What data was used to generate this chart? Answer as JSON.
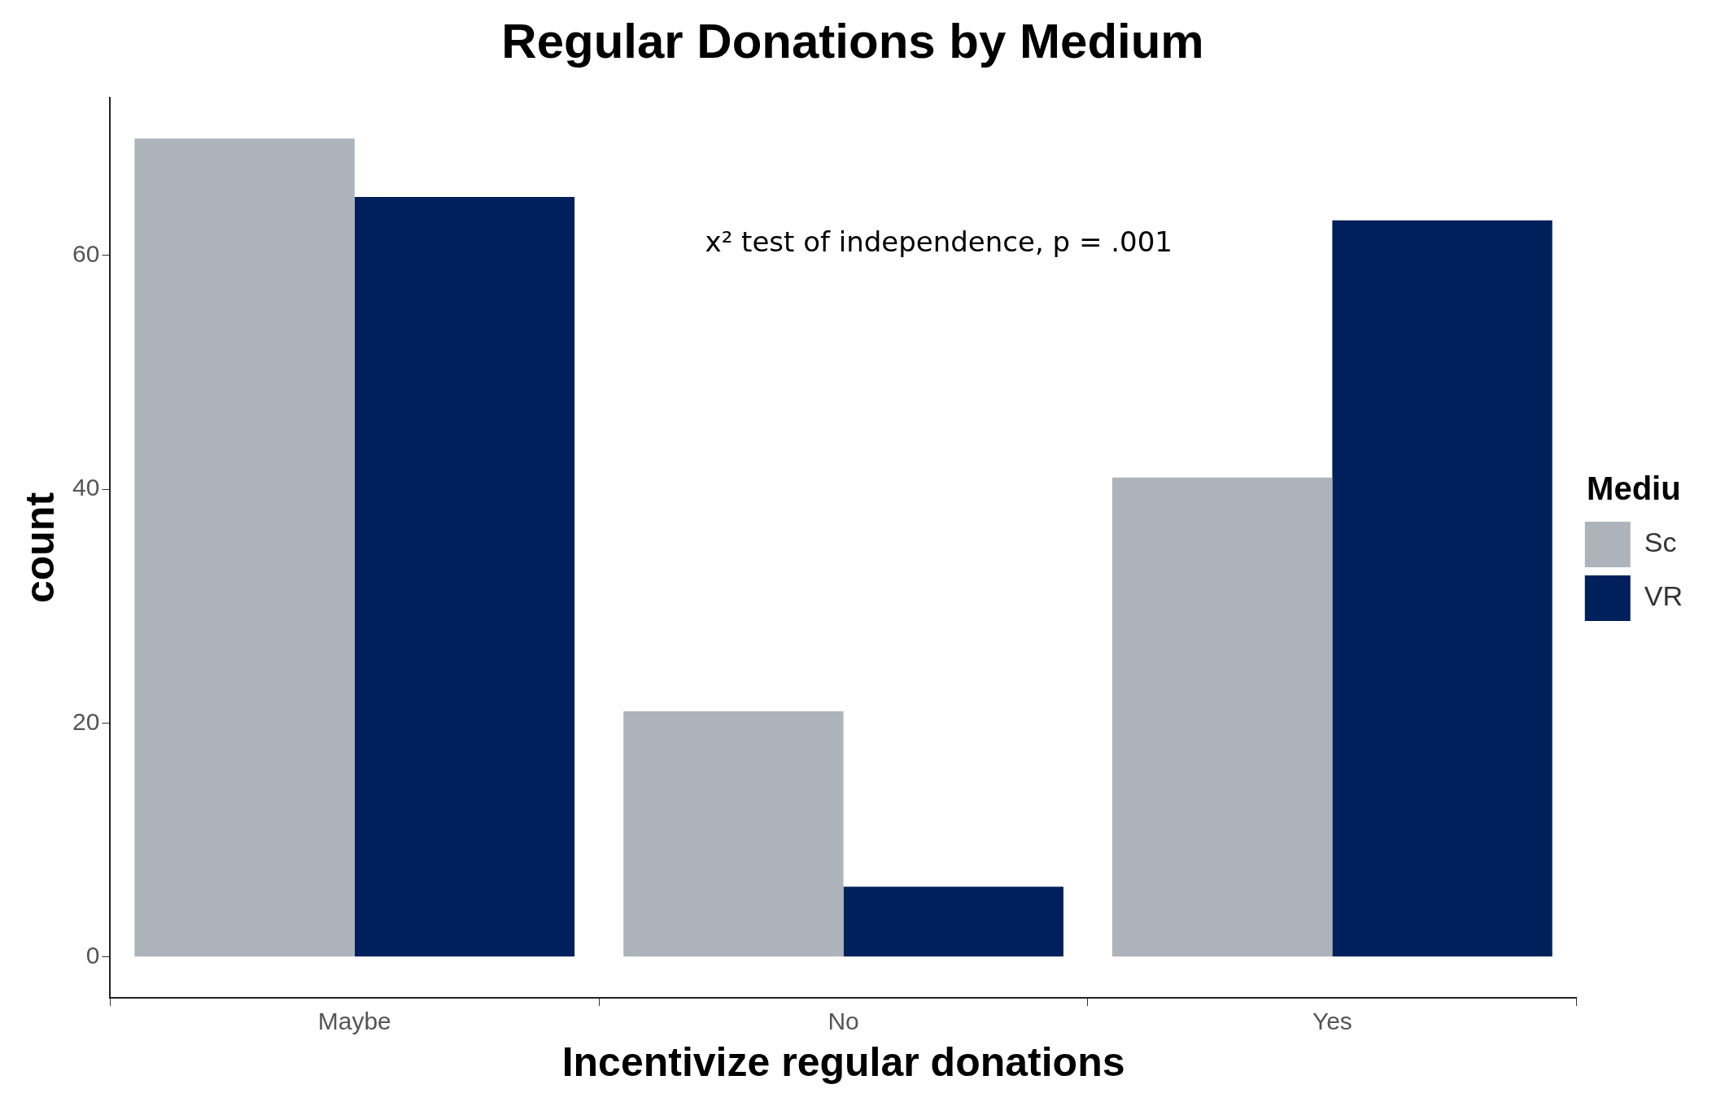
{
  "chart_data": {
    "type": "bar",
    "title": "Regular Donations by Medium",
    "xlabel": "Incentivize regular donations",
    "ylabel": "count",
    "legend_title": "Mediu",
    "categories": [
      "Maybe",
      "No",
      "Yes"
    ],
    "series": [
      {
        "name": "Sc",
        "color": "#adb3ba",
        "values": [
          70,
          21,
          41
        ]
      },
      {
        "name": "VR",
        "color": "#00205b",
        "values": [
          65,
          6,
          63
        ]
      }
    ],
    "ylim": [
      -3.5,
      73.5
    ],
    "yticks": [
      0,
      20,
      40,
      60
    ],
    "grid": false,
    "legend": "right",
    "annotations": [
      "x² test of independence, p = .001"
    ]
  }
}
